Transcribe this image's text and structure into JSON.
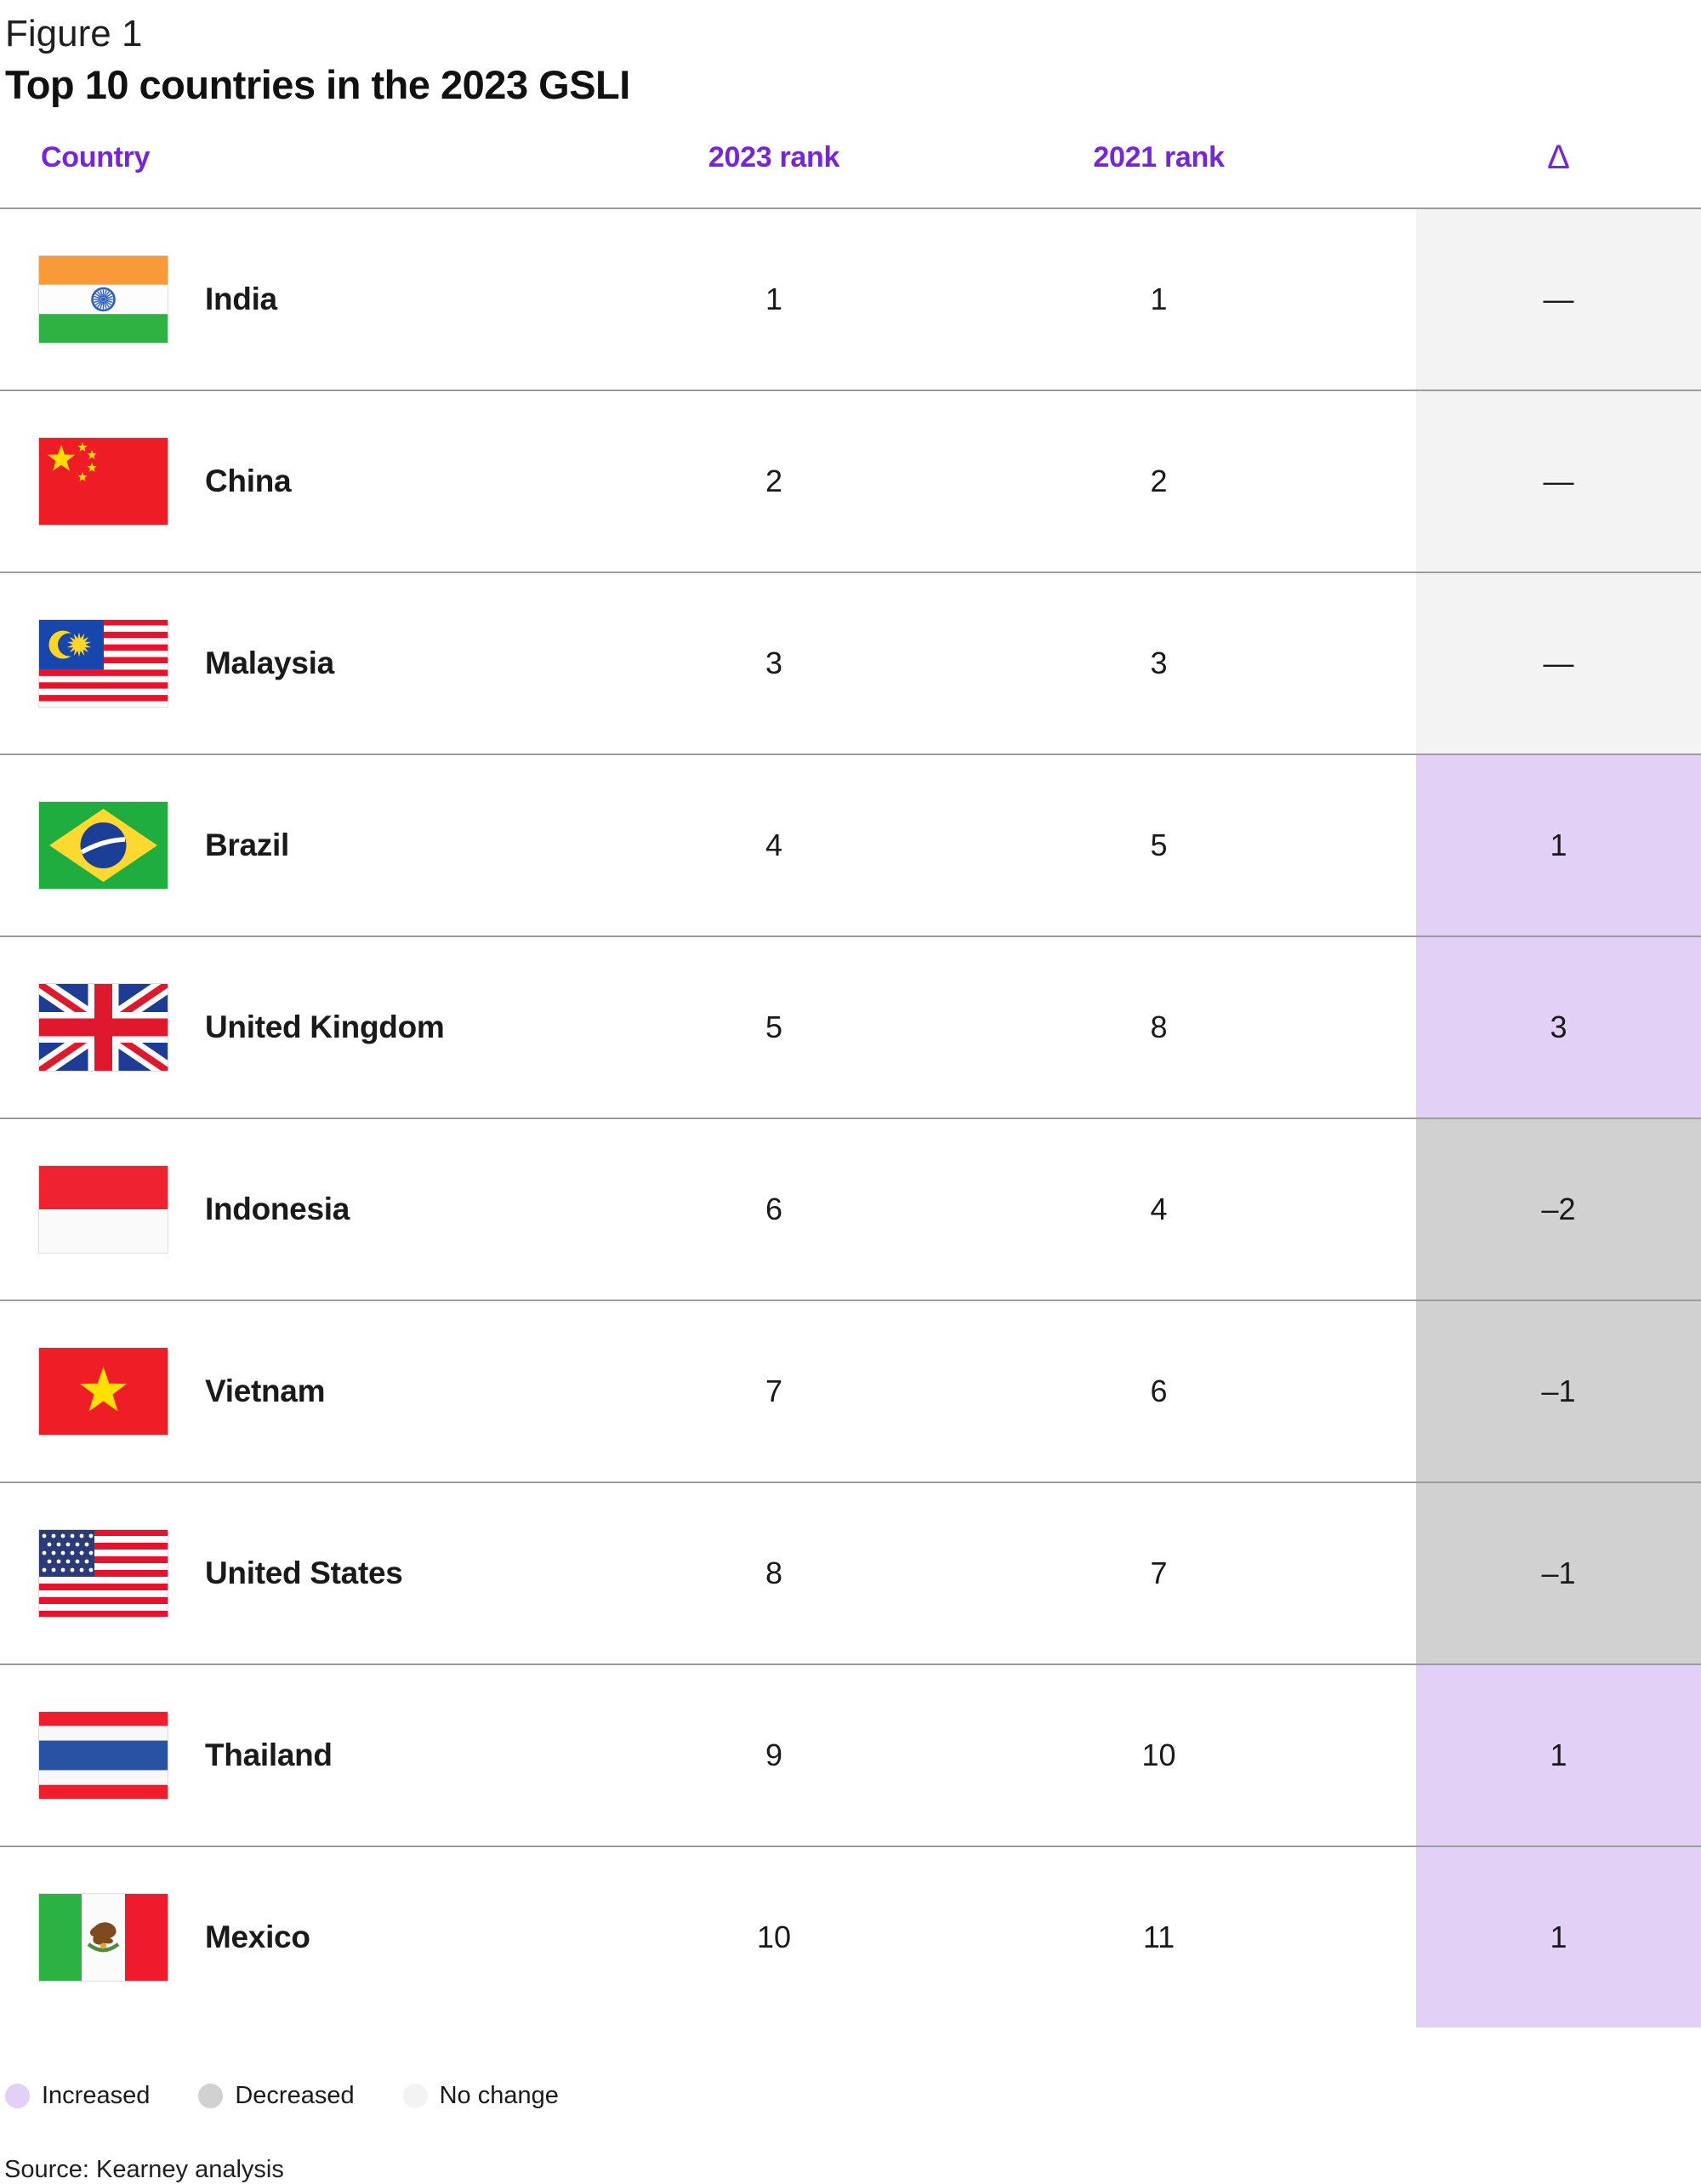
{
  "figure_label": "Figure 1",
  "title": "Top 10 countries in the 2023 GSLI",
  "accent_color": "#7823dc",
  "status_colors": {
    "increased": "#e2d0f7",
    "decreased": "#d2d1d2",
    "no_change": "#f3f3f4"
  },
  "columns": {
    "country": "Country",
    "rank_2023": "2023 rank",
    "rank_2021": "2021 rank",
    "delta": "Δ"
  },
  "rows": [
    {
      "country": "India",
      "flag": "india",
      "rank_2023": "1",
      "rank_2021": "1",
      "delta": "—",
      "status": "no_change"
    },
    {
      "country": "China",
      "flag": "china",
      "rank_2023": "2",
      "rank_2021": "2",
      "delta": "—",
      "status": "no_change"
    },
    {
      "country": "Malaysia",
      "flag": "malaysia",
      "rank_2023": "3",
      "rank_2021": "3",
      "delta": "—",
      "status": "no_change"
    },
    {
      "country": "Brazil",
      "flag": "brazil",
      "rank_2023": "4",
      "rank_2021": "5",
      "delta": "1",
      "status": "increased"
    },
    {
      "country": "United Kingdom",
      "flag": "uk",
      "rank_2023": "5",
      "rank_2021": "8",
      "delta": "3",
      "status": "increased"
    },
    {
      "country": "Indonesia",
      "flag": "indonesia",
      "rank_2023": "6",
      "rank_2021": "4",
      "delta": "–2",
      "status": "decreased"
    },
    {
      "country": "Vietnam",
      "flag": "vietnam",
      "rank_2023": "7",
      "rank_2021": "6",
      "delta": "–1",
      "status": "decreased"
    },
    {
      "country": "United States",
      "flag": "us",
      "rank_2023": "8",
      "rank_2021": "7",
      "delta": "–1",
      "status": "decreased"
    },
    {
      "country": "Thailand",
      "flag": "thailand",
      "rank_2023": "9",
      "rank_2021": "10",
      "delta": "1",
      "status": "increased"
    },
    {
      "country": "Mexico",
      "flag": "mexico",
      "rank_2023": "10",
      "rank_2021": "11",
      "delta": "1",
      "status": "increased"
    }
  ],
  "legend": [
    {
      "label": "Increased",
      "status": "increased"
    },
    {
      "label": "Decreased",
      "status": "decreased"
    },
    {
      "label": "No change",
      "status": "no_change"
    }
  ],
  "source": "Source: Kearney analysis"
}
